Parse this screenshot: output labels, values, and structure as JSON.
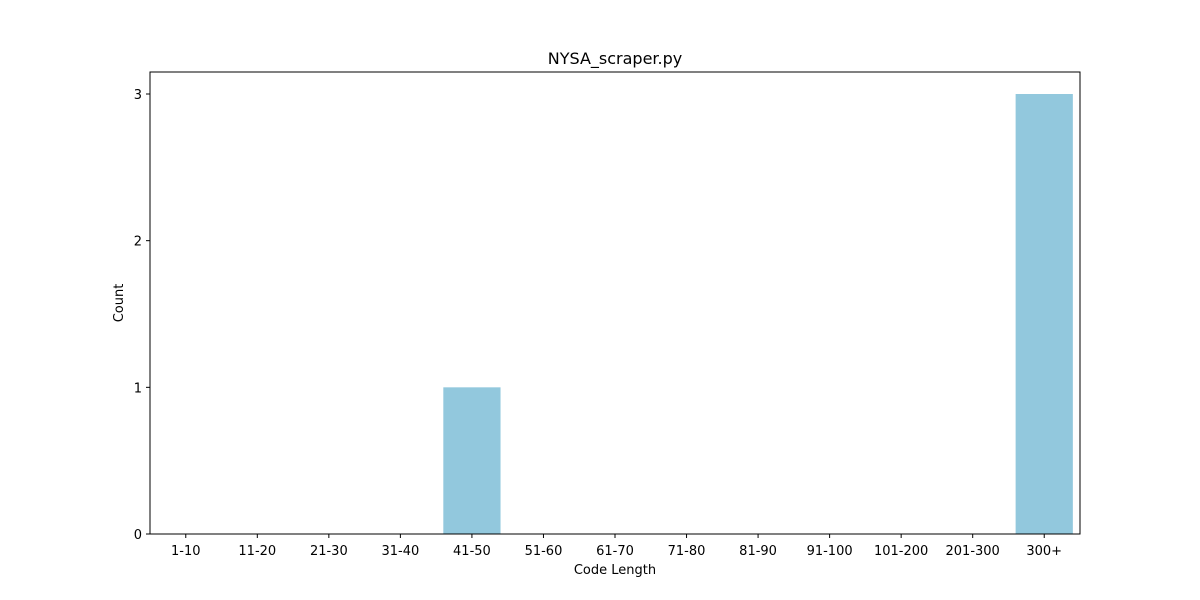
{
  "chart_data": {
    "type": "bar",
    "title": "NYSA_scraper.py",
    "xlabel": "Code Length",
    "ylabel": "Count",
    "categories": [
      "1-10",
      "11-20",
      "21-30",
      "31-40",
      "41-50",
      "51-60",
      "61-70",
      "71-80",
      "81-90",
      "91-100",
      "101-200",
      "201-300",
      "300+"
    ],
    "values": [
      0,
      0,
      0,
      0,
      1,
      0,
      0,
      0,
      0,
      0,
      0,
      0,
      3
    ],
    "ylim": [
      0,
      3.15
    ],
    "yticks": [
      0,
      1,
      2,
      3
    ],
    "grid": false,
    "bar_color": "#92c8dd"
  }
}
